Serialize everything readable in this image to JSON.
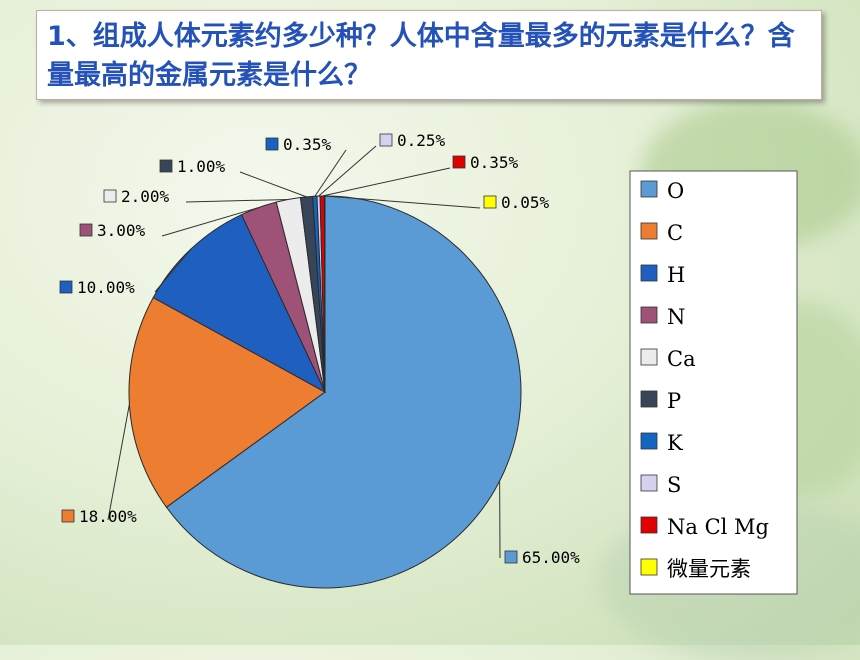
{
  "slide": {
    "title": "1、组成人体元素约多少种？人体中含量最多的元素是什么？含量最高的金属元素是什么？"
  },
  "chart_data": {
    "type": "pie",
    "categories": [
      "O",
      "C",
      "H",
      "N",
      "Ca",
      "P",
      "K",
      "S",
      "Na Cl Mg",
      "微量元素"
    ],
    "values": [
      65.0,
      18.0,
      10.0,
      3.0,
      2.0,
      1.0,
      0.35,
      0.25,
      0.35,
      0.05
    ],
    "data_labels": [
      "65.00%",
      "18.00%",
      "10.00%",
      "3.00%",
      "2.00%",
      "1.00%",
      "0.35%",
      "0.25%",
      "0.35%",
      "0.05%"
    ],
    "colors": [
      "#5b9bd5",
      "#ed7d31",
      "#1f5fbf",
      "#9e5277",
      "#ececec",
      "#384558",
      "#1565c0",
      "#d5d2f0",
      "#e00000",
      "#ffff00"
    ],
    "legend_position": "right"
  }
}
